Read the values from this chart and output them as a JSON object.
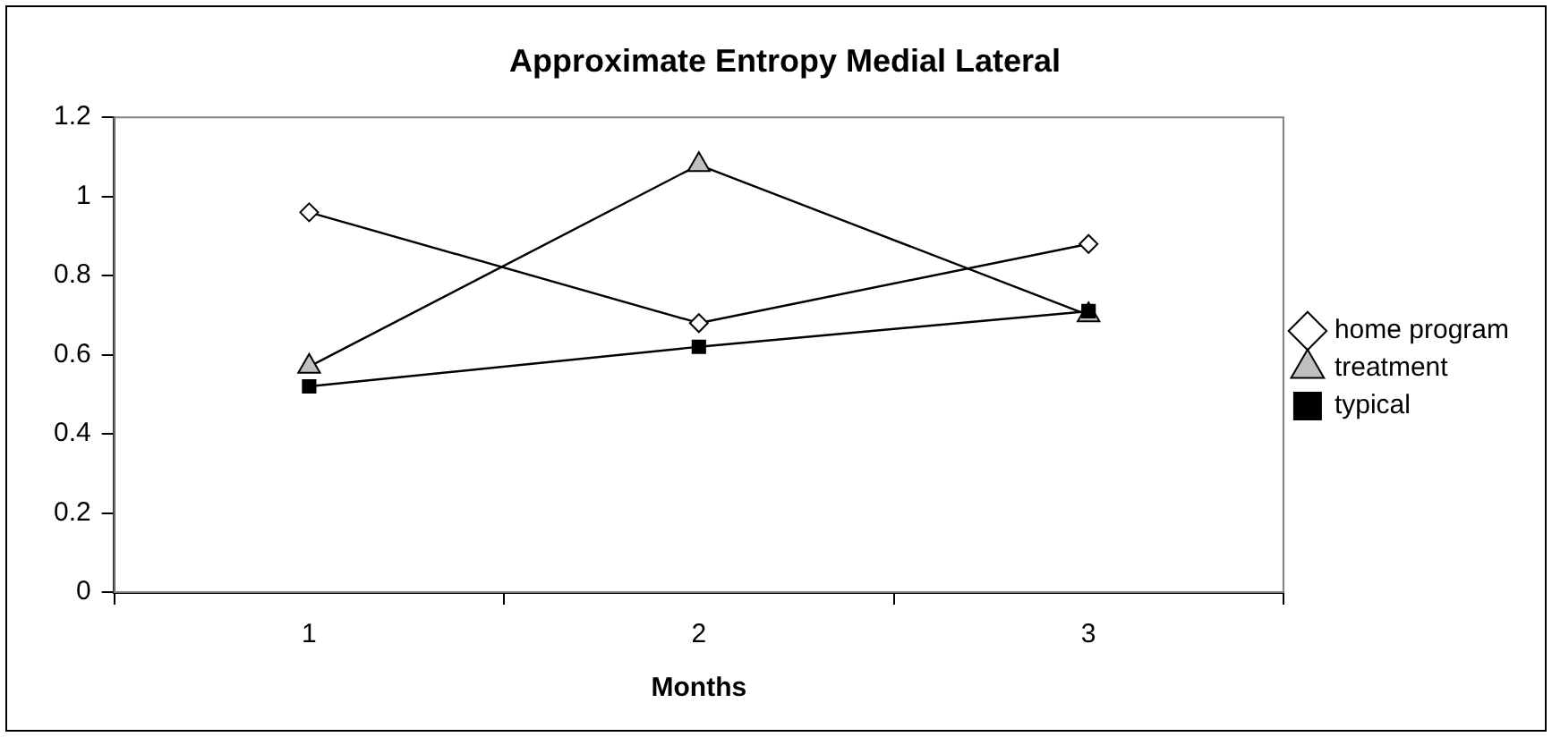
{
  "chart_data": {
    "type": "line",
    "title": "Approximate Entropy Medial Lateral",
    "xlabel": "Months",
    "categories": [
      "1",
      "2",
      "3"
    ],
    "series": [
      {
        "name": "home program",
        "color": "#ffffff",
        "marker": "diamond",
        "values": [
          0.96,
          0.68,
          0.88
        ]
      },
      {
        "name": "treatment",
        "color": "#c0c0c0",
        "marker": "triangle",
        "values": [
          0.57,
          1.08,
          0.7
        ]
      },
      {
        "name": "typical",
        "color": "#000000",
        "marker": "square",
        "values": [
          0.52,
          0.62,
          0.71
        ]
      }
    ],
    "ylim": [
      0,
      1.2
    ],
    "yticks": [
      0,
      0.2,
      0.4,
      0.6,
      0.8,
      1,
      1.2
    ],
    "grid": false,
    "legend": "right",
    "line_style": "solid"
  }
}
